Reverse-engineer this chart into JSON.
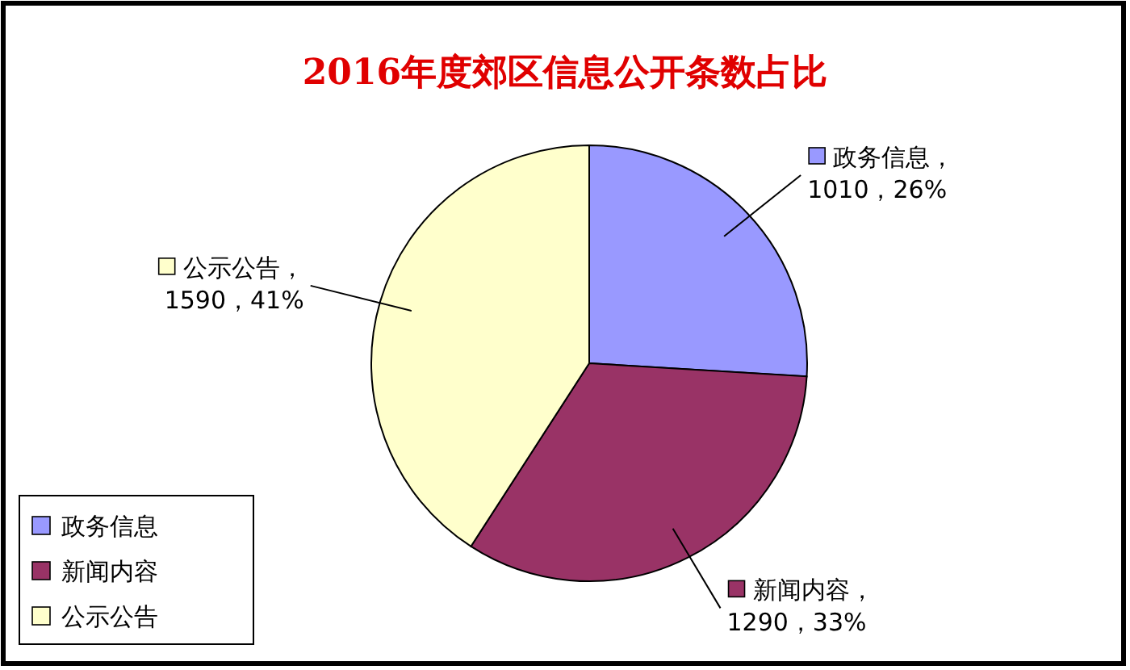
{
  "chart_data": {
    "type": "pie",
    "title": "2016年度郊区信息公开条数占比",
    "categories": [
      "政务信息",
      "新闻内容",
      "公示公告"
    ],
    "values": [
      1010,
      1290,
      1590
    ],
    "colors": [
      "#9999ff",
      "#993366",
      "#ffffcc"
    ],
    "value_labels": [
      "，1010，26%",
      "，1290，33%",
      "，1590，41%"
    ],
    "legend": "bottom left"
  }
}
